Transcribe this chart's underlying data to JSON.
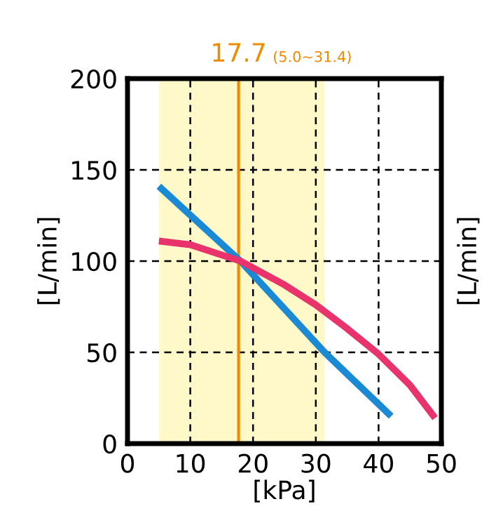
{
  "chart_data": {
    "type": "line",
    "xlabel": "[kPa]",
    "ylabel": "[L/min]",
    "y2label": "[L/min]",
    "xlim": [
      0,
      50
    ],
    "xticks": [
      0,
      10,
      20,
      30,
      40,
      50
    ],
    "ylim": [
      0,
      200
    ],
    "yticks": [
      0,
      50,
      100,
      150,
      200
    ],
    "grid": true,
    "line_style": "solid",
    "marker": "none",
    "series": [
      {
        "color": "#1a8ad4",
        "x": [
          5,
          18,
          31.4,
          42
        ],
        "values": [
          141,
          100,
          50,
          15
        ]
      },
      {
        "color": "#e8336d",
        "x": [
          5,
          10,
          18,
          25,
          30,
          35,
          40,
          45,
          49
        ],
        "values": [
          111,
          109,
          100,
          87,
          76,
          63,
          49,
          32,
          14
        ]
      }
    ],
    "ref_lines": [
      {
        "axis": "x",
        "value": 17.7,
        "label": "17.7",
        "color": "#f08a00",
        "line_style": "solid"
      }
    ],
    "bands": [
      {
        "axis": "x",
        "from": 5.0,
        "to": 31.4,
        "label": "(5.0~31.4)",
        "color": "#fff8c8"
      }
    ]
  }
}
